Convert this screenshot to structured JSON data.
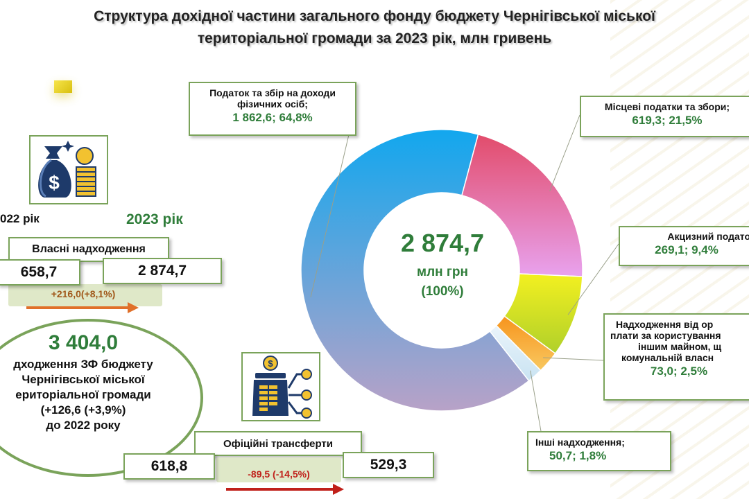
{
  "title_line1": "Структура дохідної частини загального фонду бюджету Чернігівської міської",
  "title_line2": "територіальної громади за 2023 рік, млн гривень",
  "icons": {
    "money": "money-bag-coins-icon",
    "transfer": "jar-coins-network-icon"
  },
  "own_revenue": {
    "year_prev_label": "022 рік",
    "year_cur_label": "2023 рік",
    "label": "Власні надходження",
    "prev_value": "658,7",
    "cur_value": "2 874,7",
    "delta": "+216,0(+8,1%)"
  },
  "total": {
    "value": "3 404,0",
    "line1": "дходження ЗФ бюджету",
    "line2": "Чернігівської міської",
    "line3": "ериторіальної громади",
    "line4": "(+126,6 (+3,9%)",
    "line5": "до 2022 року"
  },
  "transfers": {
    "label": "Офіційні трансферти",
    "prev_value": "618,8",
    "cur_value": "529,3",
    "delta": "-89,5 (-14,5%)"
  },
  "chart_data": {
    "type": "pie",
    "variant": "donut",
    "center_value": "2 874,7",
    "center_unit": "млн грн",
    "center_pct": "(100%)",
    "slices": [
      {
        "label_line1": "Податок та збір на доходи",
        "label_line2": "фізичних осіб;",
        "value": 1862.6,
        "percent": 64.8,
        "value_text": "1 862,6; 64,8%",
        "color": "#8fa4d8"
      },
      {
        "label_line1": "Місцеві податки та збори;",
        "label_line2": "",
        "value": 619.3,
        "percent": 21.5,
        "value_text": "619,3; 21,5%",
        "color": "#e46a98"
      },
      {
        "label_line1": "Акцизний подато",
        "label_line2": "",
        "value": 269.1,
        "percent": 9.4,
        "value_text": "269,1; 9,4%",
        "color": "#e6e81a"
      },
      {
        "label_line1": "Надходження від ор",
        "label_line2": "плати за користування",
        "label_line3": "іншим майном, щ",
        "label_line4": "комунальній власн",
        "value": 73.0,
        "percent": 2.5,
        "value_text": "73,0; 2,5%",
        "color": "#f5a13a"
      },
      {
        "label_line1": "Інші надходження;",
        "label_line2": "",
        "value": 50.7,
        "percent": 1.8,
        "value_text": "50,7; 1,8%",
        "color": "#d6eaf5"
      }
    ]
  }
}
